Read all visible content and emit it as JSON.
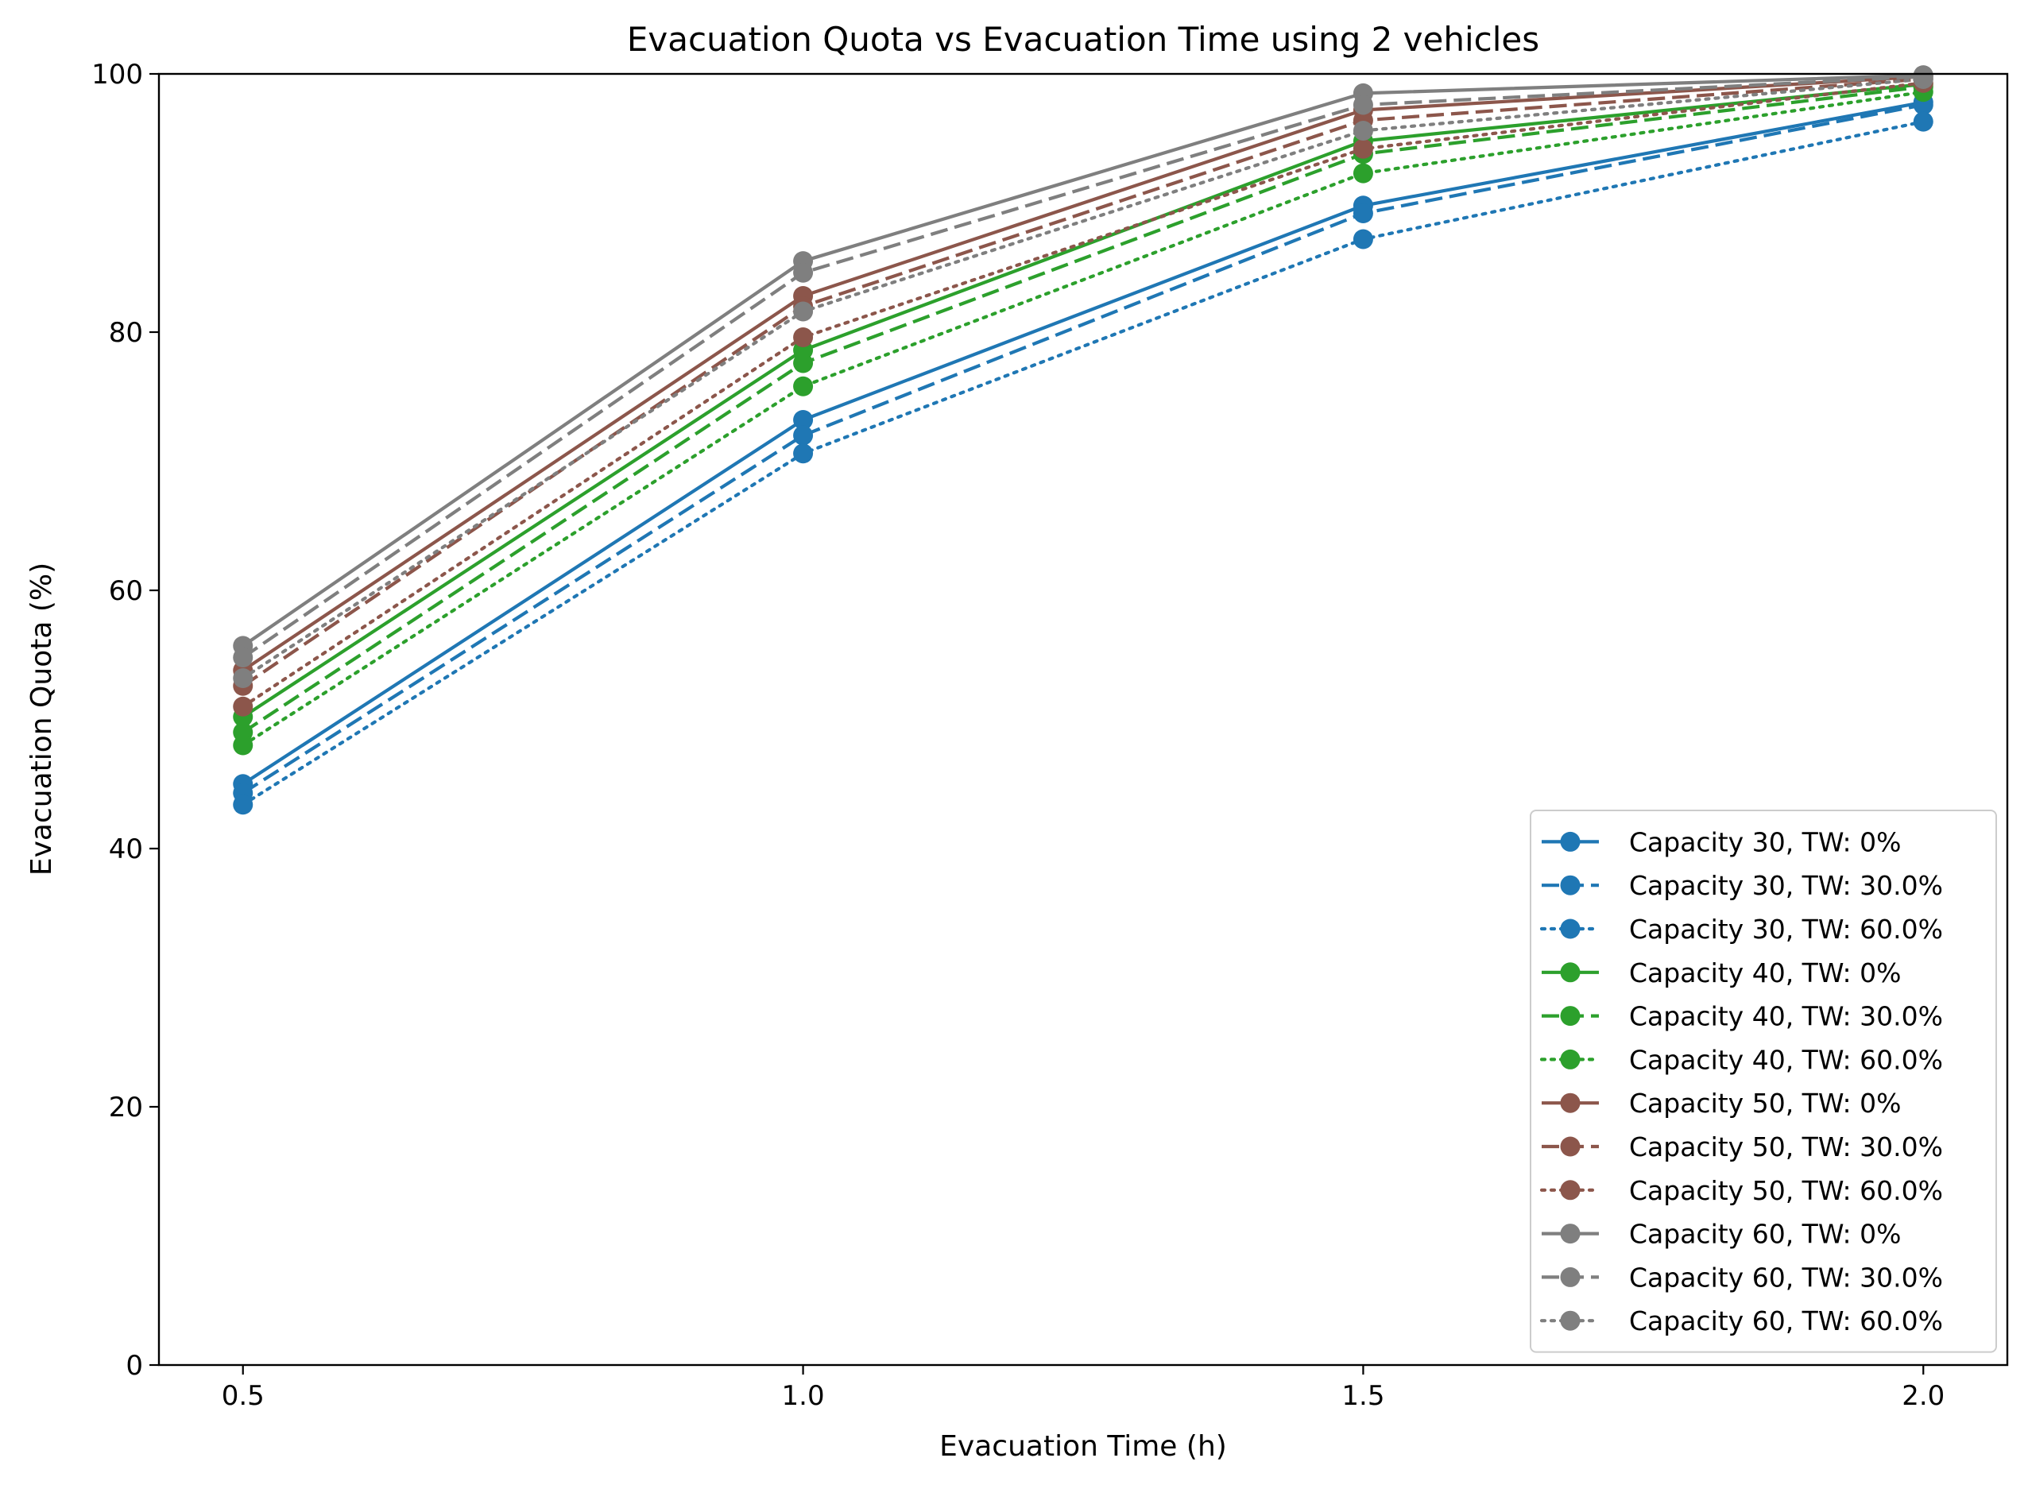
{
  "chart_data": {
    "type": "line",
    "title": "Evacuation Quota vs Evacuation Time using 2 vehicles",
    "xlabel": "Evacuation Time (h)",
    "ylabel": "Evacuation Quota (%)",
    "x": [
      0.5,
      1.0,
      1.5,
      2.0
    ],
    "xticks": [
      "0.5",
      "1.0",
      "1.5",
      "2.0"
    ],
    "xlim": [
      0.425,
      2.075
    ],
    "ylim": [
      0,
      100
    ],
    "yticks": [
      "0",
      "20",
      "40",
      "60",
      "80",
      "100"
    ],
    "grid": false,
    "legend_position": "bottom-right",
    "series": [
      {
        "name": "Capacity 30, TW: 0%",
        "color": "#1f77b4",
        "dash": "solid",
        "values": [
          45.0,
          73.2,
          89.8,
          97.8
        ]
      },
      {
        "name": "Capacity 30, TW: 30.0%",
        "color": "#1f77b4",
        "dash": "dashed",
        "values": [
          44.3,
          72.0,
          89.2,
          97.6
        ]
      },
      {
        "name": "Capacity 30, TW: 60.0%",
        "color": "#1f77b4",
        "dash": "dotted",
        "values": [
          43.4,
          70.6,
          87.2,
          96.3
        ]
      },
      {
        "name": "Capacity 40, TW: 0%",
        "color": "#2ca02c",
        "dash": "solid",
        "values": [
          50.2,
          78.6,
          94.8,
          99.2
        ]
      },
      {
        "name": "Capacity 40, TW: 30.0%",
        "color": "#2ca02c",
        "dash": "dashed",
        "values": [
          49.0,
          77.6,
          93.8,
          99.0
        ]
      },
      {
        "name": "Capacity 40, TW: 60.0%",
        "color": "#2ca02c",
        "dash": "dotted",
        "values": [
          48.0,
          75.8,
          92.3,
          98.6
        ]
      },
      {
        "name": "Capacity 50, TW: 0%",
        "color": "#8c564b",
        "dash": "solid",
        "values": [
          53.8,
          82.8,
          97.2,
          99.8
        ]
      },
      {
        "name": "Capacity 50, TW: 30.0%",
        "color": "#8c564b",
        "dash": "dashed",
        "values": [
          52.6,
          82.0,
          96.4,
          99.6
        ]
      },
      {
        "name": "Capacity 50, TW: 60.0%",
        "color": "#8c564b",
        "dash": "dotted",
        "values": [
          51.0,
          79.6,
          94.2,
          99.3
        ]
      },
      {
        "name": "Capacity 60, TW: 0%",
        "color": "#7f7f7f",
        "dash": "solid",
        "values": [
          55.7,
          85.5,
          98.5,
          99.9
        ]
      },
      {
        "name": "Capacity 60, TW: 30.0%",
        "color": "#7f7f7f",
        "dash": "dashed",
        "values": [
          54.8,
          84.6,
          97.6,
          99.8
        ]
      },
      {
        "name": "Capacity 60, TW: 60.0%",
        "color": "#7f7f7f",
        "dash": "dotted",
        "values": [
          53.2,
          81.6,
          95.6,
          99.6
        ]
      }
    ]
  }
}
